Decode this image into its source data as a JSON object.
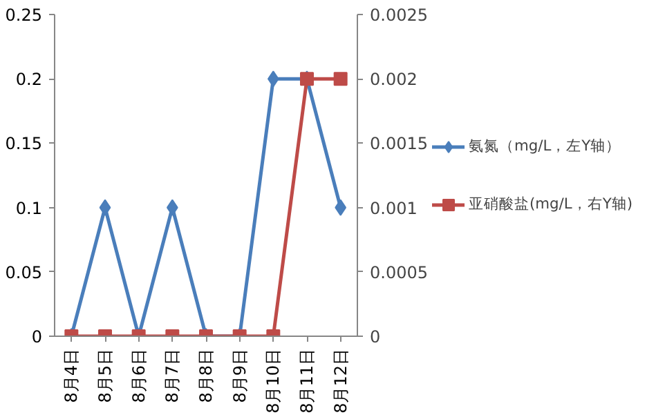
{
  "chart_data": {
    "type": "line",
    "categories": [
      "8月4日",
      "8月5日",
      "8月6日",
      "8月7日",
      "8月8日",
      "8月9日",
      "8月10日",
      "8月11日",
      "8月12日"
    ],
    "series": [
      {
        "name": "氨氮（mg/L，左Y轴）",
        "color": "#4a7ebb",
        "marker": "diamond",
        "values": [
          0,
          0.1,
          0,
          0.1,
          0,
          0,
          0.2,
          0.2,
          0.1
        ]
      },
      {
        "name": "亚硝酸盐(mg/L，右Y轴)",
        "color": "#be4b48",
        "marker": "square",
        "axis": "y2",
        "values": [
          0,
          0,
          0,
          0,
          0,
          0,
          0,
          0.002,
          0.002
        ]
      }
    ],
    "ylim": [
      0,
      0.25
    ],
    "yticks": [
      0,
      0.05,
      0.1,
      0.15,
      0.2,
      0.25
    ],
    "y2lim": [
      0,
      0.0025
    ],
    "y2ticks": [
      0,
      0.0005,
      0.001,
      0.0015,
      0.002,
      0.0025
    ],
    "grid": false,
    "legend": "right",
    "line_style": "solid"
  }
}
